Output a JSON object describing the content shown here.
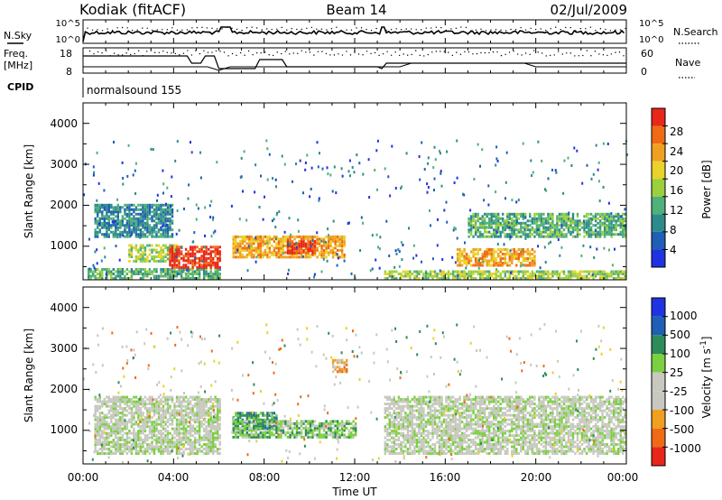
{
  "header": {
    "station": "Kodiak (fitACF)",
    "beam": "Beam 14",
    "date": "02/Jul/2009"
  },
  "noise_panel": {
    "left_label": "N.Sky",
    "right_label": "N.Search",
    "left_ticks": [
      "10^5",
      "10^0"
    ],
    "right_ticks": [
      "10^5",
      "10^0"
    ]
  },
  "freq_panel": {
    "left_label_1": "Freq.",
    "left_label_2": "[MHz]",
    "right_label": "Nave",
    "left_ticks": [
      "18",
      "8"
    ],
    "right_ticks": [
      "60",
      "0"
    ]
  },
  "cpid": {
    "label": "CPID",
    "program": "normalsound 155"
  },
  "x_axis": {
    "label": "Time UT",
    "ticks": [
      "00:00",
      "04:00",
      "08:00",
      "12:00",
      "16:00",
      "20:00",
      "00:00"
    ]
  },
  "power_panel": {
    "ylabel": "Slant Range [km]",
    "yticks": [
      "4000",
      "3000",
      "2000",
      "1000"
    ],
    "colorbar_label": "Power [dB]",
    "colorbar_ticks": [
      "28",
      "24",
      "20",
      "16",
      "12",
      "8",
      "4"
    ]
  },
  "velocity_panel": {
    "ylabel": "Slant Range [km]",
    "yticks": [
      "4000",
      "3000",
      "2000",
      "1000"
    ],
    "colorbar_label": "Velocity  [m s",
    "colorbar_sup": "-1",
    "colorbar_close": "]",
    "colorbar_ticks": [
      "1000",
      "500",
      "100",
      "25",
      "-25",
      "-100",
      "-500",
      "-1000"
    ]
  },
  "chart_data": {
    "type": "heatmap",
    "x_range": [
      "00:00",
      "24:00"
    ],
    "y_range_km": [
      180,
      4500
    ],
    "data_gap_hours": [
      [
        6.0,
        6.5
      ],
      [
        13.1,
        13.3
      ]
    ],
    "power_colors": [
      "#1f34e0",
      "#1f5fb5",
      "#2e8b8b",
      "#4fb07a",
      "#9ccf3c",
      "#e9d22a",
      "#f0a020",
      "#f06a16",
      "#e8261a"
    ],
    "velocity_colors": [
      "#1f34e0",
      "#1f5fb5",
      "#2e8b5a",
      "#7ad040",
      "#c8c8c0",
      "#c8c8c0",
      "#f0a020",
      "#f06a16",
      "#e8261a"
    ],
    "power_regions": [
      {
        "t0": 0.2,
        "t1": 6.0,
        "r0": 180,
        "r1": 420,
        "level": 3
      },
      {
        "t0": 2.0,
        "t1": 4.2,
        "r0": 600,
        "r1": 1000,
        "level": 4
      },
      {
        "t0": 3.8,
        "t1": 6.0,
        "r0": 450,
        "r1": 1000,
        "level": 8
      },
      {
        "t0": 0.5,
        "t1": 4.0,
        "r0": 1200,
        "r1": 2000,
        "level": 2
      },
      {
        "t0": 6.6,
        "t1": 11.5,
        "r0": 700,
        "r1": 1200,
        "level": 6
      },
      {
        "t0": 9.0,
        "t1": 10.2,
        "r0": 800,
        "r1": 1100,
        "level": 8
      },
      {
        "t0": 16.5,
        "t1": 20.0,
        "r0": 500,
        "r1": 900,
        "level": 6
      },
      {
        "t0": 13.3,
        "t1": 24.0,
        "r0": 180,
        "r1": 380,
        "level": 4
      },
      {
        "t0": 17.0,
        "t1": 24.0,
        "r0": 1200,
        "r1": 1800,
        "level": 3
      }
    ],
    "velocity_regions": [
      {
        "t0": 0.5,
        "t1": 6.0,
        "r0": 400,
        "r1": 1800,
        "level": 4
      },
      {
        "t0": 6.6,
        "t1": 8.5,
        "r0": 1000,
        "r1": 1400,
        "level": 2
      },
      {
        "t0": 6.6,
        "t1": 12.0,
        "r0": 800,
        "r1": 1200,
        "level": 3
      },
      {
        "t0": 11.0,
        "t1": 11.6,
        "r0": 2400,
        "r1": 2700,
        "level": 6
      },
      {
        "t0": 13.3,
        "t1": 24.0,
        "r0": 400,
        "r1": 1800,
        "level": 4
      }
    ]
  }
}
